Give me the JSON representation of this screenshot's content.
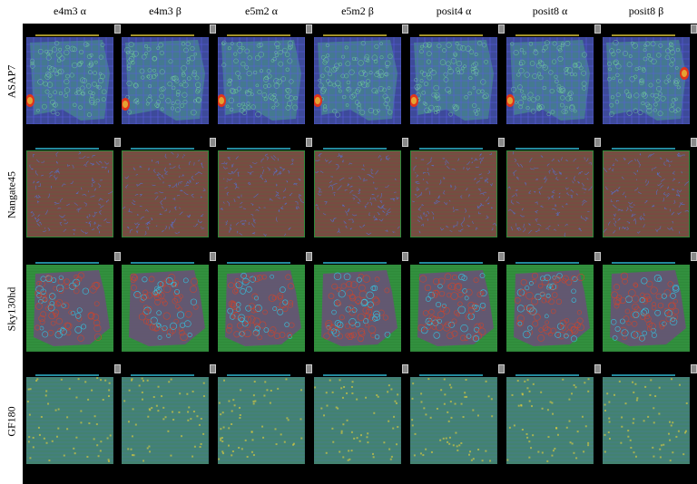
{
  "columns": [
    "e4m3 α",
    "e4m3 β",
    "e5m2 α",
    "e5m2 β",
    "posit4 α",
    "posit8 α",
    "posit8 β"
  ],
  "rows": [
    {
      "label": "ASAP7",
      "style": "asap7"
    },
    {
      "label": "Nangate45",
      "style": "nangate"
    },
    {
      "label": "Sky130hd",
      "style": "sky130"
    },
    {
      "label": "GF180",
      "style": "gf180"
    }
  ],
  "colors": {
    "background": "#000000",
    "asap7_fill": "#3d4a9a",
    "asap7_grid": "#5a5ce0",
    "asap7_hot": "#e0341c",
    "nangate_fill": "#7a4a42",
    "nangate_grid": "#5b6cbf",
    "nangate_green": "#2f8a3a",
    "sky130_green": "#2f8a3a",
    "sky130_fill": "#6b4f7a",
    "sky130_red": "#c8452f",
    "gf180_fill": "#3f7a6a",
    "gf180_line": "#6fd0b0",
    "accent_cyan": "#33c4e0",
    "accent_yellow": "#e8d23a"
  }
}
